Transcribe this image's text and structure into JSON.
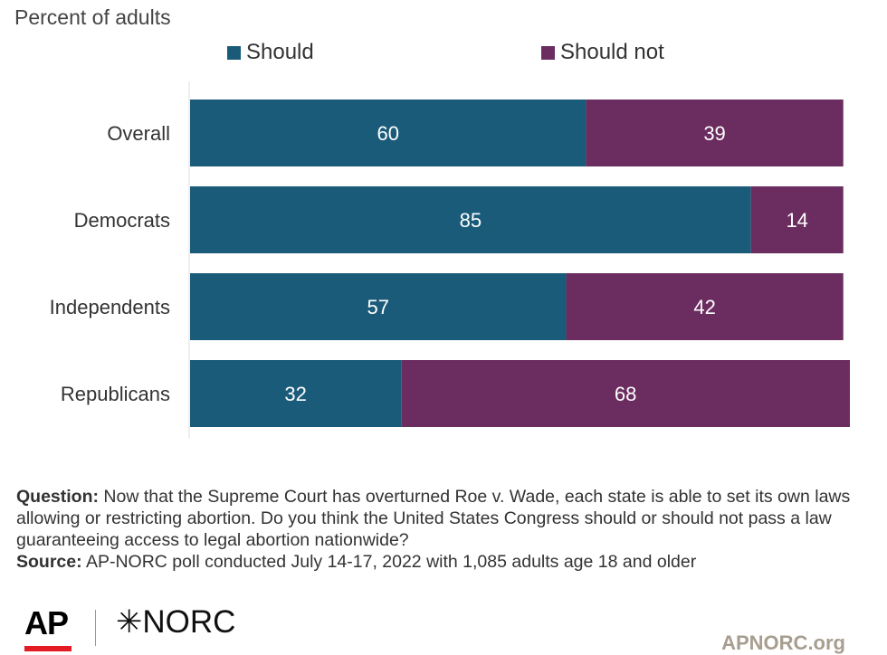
{
  "chart_data": {
    "type": "bar",
    "orientation": "horizontal",
    "stacked": true,
    "subtitle": "Percent of adults",
    "categories": [
      "Overall",
      "Democrats",
      "Independents",
      "Republicans"
    ],
    "series": [
      {
        "name": "Should",
        "values": [
          60,
          85,
          57,
          32
        ],
        "color": "#1b5b7a"
      },
      {
        "name": "Should not",
        "values": [
          39,
          14,
          42,
          68
        ],
        "color": "#6b2d5f"
      }
    ],
    "xlim": [
      0,
      100
    ],
    "grid": false,
    "legend_position": "top"
  },
  "footer": {
    "question_label": "Question:",
    "question_text": "Now that the Supreme Court has overturned Roe v. Wade, each state is able to set its own laws allowing or restricting abortion. Do you think the United States Congress should or should not pass a law guaranteeing access to legal abortion nationwide?",
    "source_label": "Source:",
    "source_text": "AP-NORC poll conducted July 14-17, 2022 with 1,085 adults age 18 and older"
  },
  "branding": {
    "ap_logo": "AP",
    "norc_logo": "✳NORC",
    "site": "APNORC.org"
  }
}
